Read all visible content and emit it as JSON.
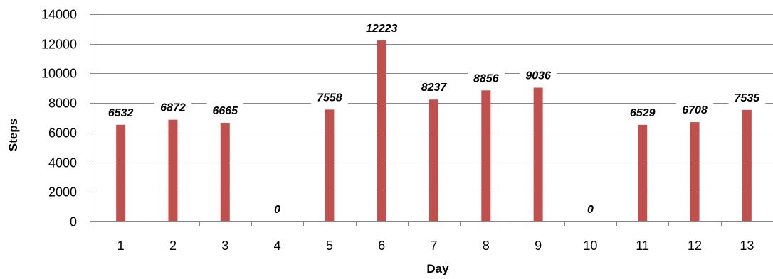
{
  "chart_data": {
    "type": "bar",
    "categories": [
      "1",
      "2",
      "3",
      "4",
      "5",
      "6",
      "7",
      "8",
      "9",
      "10",
      "11",
      "12",
      "13"
    ],
    "values": [
      6532,
      6872,
      6665,
      0,
      7558,
      12223,
      8237,
      8856,
      9036,
      0,
      6529,
      6708,
      7535
    ],
    "data_labels": [
      "6532",
      "6872",
      "6665",
      "0",
      "7558",
      "12223",
      "8237",
      "8856",
      "9036",
      "0",
      "6529",
      "6708",
      "7535"
    ],
    "y_ticks": [
      "0",
      "2000",
      "4000",
      "6000",
      "8000",
      "10000",
      "12000",
      "14000"
    ],
    "xlabel": "Day",
    "ylabel": "Steps",
    "ylim": [
      0,
      14000
    ],
    "grid": true,
    "legend": "none",
    "bar_color": "#C0504D",
    "gridline_color": "#868686"
  }
}
